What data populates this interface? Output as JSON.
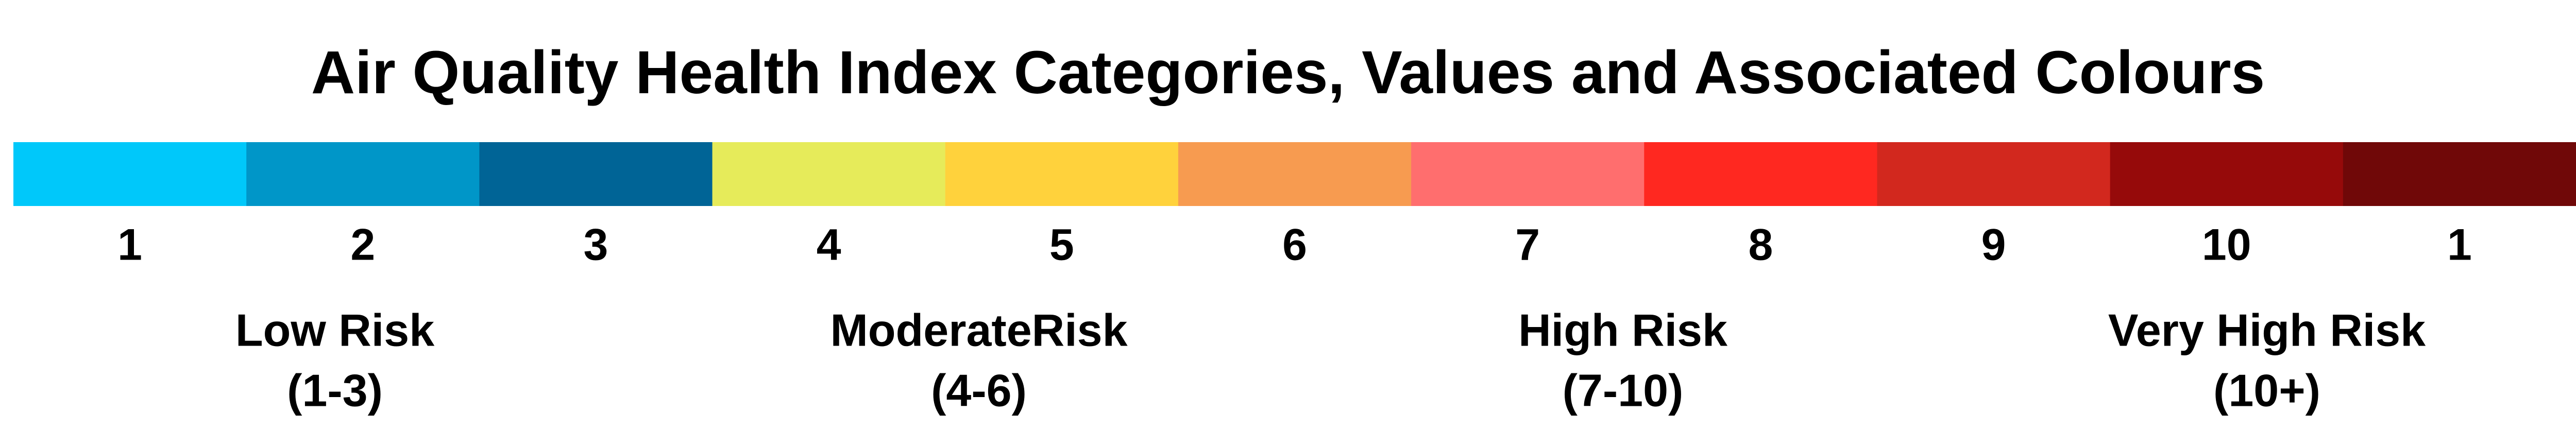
{
  "title": "Air Quality Health Index Categories, Values and Associated Colours",
  "segments": [
    {
      "label": "1",
      "color": "#00c8fa"
    },
    {
      "label": "2",
      "color": "#0096c8"
    },
    {
      "label": "3",
      "color": "#006496"
    },
    {
      "label": "4",
      "color": "#e6eb5a"
    },
    {
      "label": "5",
      "color": "#ffd23c"
    },
    {
      "label": "6",
      "color": "#f79b50"
    },
    {
      "label": "7",
      "color": "#ff6e6e"
    },
    {
      "label": "8",
      "color": "#ff2820"
    },
    {
      "label": "9",
      "color": "#d2281e"
    },
    {
      "label": "10",
      "color": "#960a0a"
    },
    {
      "label": "1",
      "color": "#700808"
    }
  ],
  "groups": [
    {
      "name": "Low Risk",
      "range": "(1-3)"
    },
    {
      "name": "ModerateRisk",
      "range": "(4-6)"
    },
    {
      "name": "High Risk",
      "range": "(7-10)"
    },
    {
      "name": "Very High Risk",
      "range": "(10+)"
    }
  ]
}
